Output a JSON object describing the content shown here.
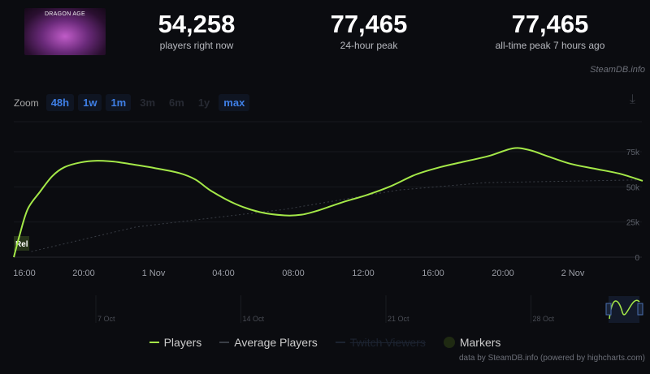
{
  "header": {
    "cover_title": "DRAGON AGE",
    "stats": [
      {
        "value": "54,258",
        "label": "players right now"
      },
      {
        "value": "77,465",
        "label": "24-hour peak"
      },
      {
        "value": "77,465",
        "label": "all-time peak 7 hours ago"
      }
    ],
    "brand": "SteamDB.info"
  },
  "zoom": {
    "label": "Zoom",
    "buttons": [
      {
        "label": "48h",
        "enabled": true
      },
      {
        "label": "1w",
        "enabled": true
      },
      {
        "label": "1m",
        "enabled": true
      },
      {
        "label": "3m",
        "enabled": false
      },
      {
        "label": "6m",
        "enabled": false
      },
      {
        "label": "1y",
        "enabled": false
      },
      {
        "label": "max",
        "enabled": true
      }
    ],
    "download_icon": "download-icon"
  },
  "chart_data": {
    "type": "line",
    "x_ticks": [
      "16:00",
      "20:00",
      "1 Nov",
      "04:00",
      "08:00",
      "12:00",
      "16:00",
      "20:00",
      "2 Nov"
    ],
    "y_ticks": [
      "0",
      "25k",
      "50k",
      "75k"
    ],
    "ylim": [
      0,
      75000
    ],
    "grid": true,
    "marker_label": "Rel",
    "series": [
      {
        "name": "Players",
        "color": "#a4e848",
        "points": [
          [
            "10-31 16:00",
            0
          ],
          [
            "10-31 16:20",
            15700
          ],
          [
            "10-31 16:48",
            34300
          ],
          [
            "10-31 17:30",
            46500
          ],
          [
            "10-31 18:12",
            57600
          ],
          [
            "10-31 18:54",
            64000
          ],
          [
            "10-31 19:50",
            67400
          ],
          [
            "10-31 20:46",
            68600
          ],
          [
            "10-31 21:42",
            68000
          ],
          [
            "10-31 22:38",
            66300
          ],
          [
            "11-01 00:03",
            63400
          ],
          [
            "11-01 01:27",
            59900
          ],
          [
            "11-01 02:24",
            55200
          ],
          [
            "11-01 03:18",
            47100
          ],
          [
            "11-01 04:42",
            37800
          ],
          [
            "11-01 06:06",
            32000
          ],
          [
            "11-01 07:30",
            29700
          ],
          [
            "11-01 08:28",
            30200
          ],
          [
            "11-01 09:24",
            33100
          ],
          [
            "11-01 10:48",
            39000
          ],
          [
            "11-01 12:12",
            44200
          ],
          [
            "11-01 13:36",
            50600
          ],
          [
            "11-01 15:00",
            58700
          ],
          [
            "11-01 16:24",
            64000
          ],
          [
            "11-01 17:48",
            68000
          ],
          [
            "11-01 19:12",
            72000
          ],
          [
            "11-01 20:36",
            77465
          ],
          [
            "11-01 21:34",
            76000
          ],
          [
            "11-01 22:30",
            72000
          ],
          [
            "11-01 23:54",
            66300
          ],
          [
            "11-02 01:18",
            62800
          ],
          [
            "11-02 02:42",
            59300
          ],
          [
            "11-02 04:00",
            54258
          ]
        ]
      },
      {
        "name": "Average Players",
        "color": "#555a63",
        "points": [
          [
            "10-31 17:00",
            4000
          ],
          [
            "10-31 23:00",
            21500
          ],
          [
            "11-01 07:30",
            34000
          ],
          [
            "11-01 14:00",
            47700
          ],
          [
            "11-01 19:00",
            53000
          ],
          [
            "11-02 04:00",
            55000
          ]
        ]
      }
    ],
    "navigator_ticks": [
      "7 Oct",
      "14 Oct",
      "21 Oct",
      "28 Oct"
    ]
  },
  "legend": [
    {
      "label": "Players",
      "color": "#a4e848",
      "enabled": true
    },
    {
      "label": "Average Players",
      "color": "#555a63",
      "enabled": true
    },
    {
      "label": "Twitch Viewers",
      "color": "#1c2330",
      "enabled": false
    },
    {
      "label": "Markers",
      "color": "#1f2a12",
      "enabled": true
    }
  ],
  "credits": "data by SteamDB.info (powered by highcharts.com)"
}
